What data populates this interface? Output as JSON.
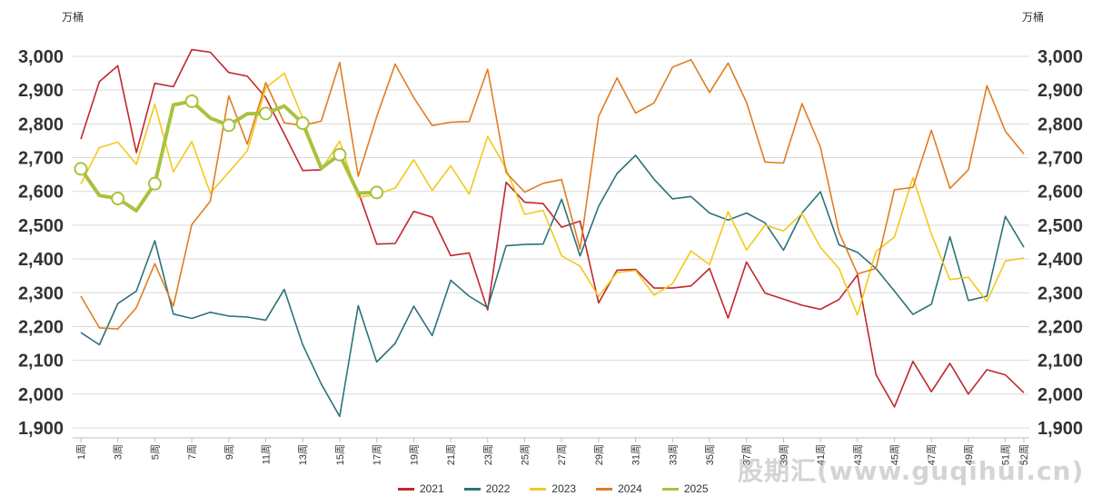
{
  "units": {
    "left": "万桶",
    "right": "万桶"
  },
  "watermark": "股期汇(www.guqihui.cn)",
  "chart_data": {
    "type": "line",
    "ylim": [
      1900,
      3000
    ],
    "yticks": [
      1900,
      2000,
      2100,
      2200,
      2300,
      2400,
      2500,
      2600,
      2700,
      2800,
      2900,
      3000
    ],
    "ytick_labels": [
      "1,900",
      "2,000",
      "2,100",
      "2,200",
      "2,300",
      "2,400",
      "2,500",
      "2,600",
      "2,700",
      "2,800",
      "2,900",
      "3,000"
    ],
    "x_labels": [
      "1周",
      "3周",
      "5周",
      "7周",
      "9周",
      "11周",
      "13周",
      "15周",
      "17周",
      "19周",
      "21周",
      "23周",
      "25周",
      "27周",
      "29周",
      "31周",
      "33周",
      "35周",
      "37周",
      "39周",
      "41周",
      "43周",
      "45周",
      "47周",
      "49周",
      "51周",
      "52周"
    ],
    "x_label_weeks": [
      1,
      3,
      5,
      7,
      9,
      11,
      13,
      15,
      17,
      19,
      21,
      23,
      25,
      27,
      29,
      31,
      33,
      35,
      37,
      39,
      41,
      43,
      45,
      47,
      49,
      51,
      52
    ],
    "legend_position": "bottom",
    "series": [
      {
        "name": "2021",
        "color": "#c0272d",
        "values": [
          2755,
          2925,
          2972,
          2715,
          2920,
          2910,
          3020,
          3012,
          2952,
          2941,
          2878,
          2770,
          2662,
          2664,
          2710,
          2600,
          2444,
          2446,
          2541,
          2524,
          2410,
          2418,
          2249,
          2627,
          2568,
          2564,
          2494,
          2512,
          2270,
          2367,
          2369,
          2314,
          2314,
          2320,
          2372,
          2225,
          2391,
          2299,
          2281,
          2263,
          2251,
          2280,
          2353,
          2058,
          1962,
          2097,
          2007,
          2091,
          2000,
          2072,
          2057,
          2004
        ]
      },
      {
        "name": "2022",
        "color": "#2a7379",
        "values": [
          2182,
          2146,
          2268,
          2305,
          2454,
          2237,
          2224,
          2242,
          2231,
          2228,
          2219,
          2310,
          2146,
          2030,
          1934,
          2262,
          2095,
          2150,
          2260,
          2173,
          2337,
          2290,
          2256,
          2439,
          2443,
          2444,
          2577,
          2409,
          2556,
          2653,
          2707,
          2636,
          2578,
          2585,
          2536,
          2515,
          2536,
          2507,
          2426,
          2536,
          2599,
          2442,
          2420,
          2372,
          2305,
          2236,
          2266,
          2466,
          2277,
          2290,
          2526,
          2435
        ]
      },
      {
        "name": "2023",
        "color": "#f2c919",
        "values": [
          2622,
          2730,
          2746,
          2680,
          2858,
          2658,
          2748,
          2595,
          2657,
          2720,
          2907,
          2950,
          2818,
          2664,
          2749,
          2582,
          2591,
          2610,
          2694,
          2603,
          2676,
          2592,
          2763,
          2667,
          2532,
          2544,
          2409,
          2379,
          2289,
          2360,
          2366,
          2293,
          2327,
          2424,
          2383,
          2540,
          2427,
          2500,
          2483,
          2535,
          2434,
          2372,
          2234,
          2422,
          2465,
          2641,
          2474,
          2339,
          2346,
          2274,
          2394,
          2403
        ]
      },
      {
        "name": "2024",
        "color": "#e07d23",
        "values": [
          2290,
          2196,
          2193,
          2256,
          2386,
          2260,
          2502,
          2571,
          2883,
          2740,
          2922,
          2803,
          2795,
          2808,
          2982,
          2645,
          2821,
          2977,
          2878,
          2795,
          2805,
          2807,
          2962,
          2656,
          2598,
          2624,
          2635,
          2429,
          2822,
          2936,
          2832,
          2862,
          2968,
          2990,
          2893,
          2980,
          2864,
          2687,
          2684,
          2860,
          2731,
          2479,
          2356,
          2372,
          2605,
          2612,
          2781,
          2609,
          2664,
          2913,
          2778,
          2711
        ]
      },
      {
        "name": "2025",
        "color": "#a9c23f",
        "values": [
          2667,
          2588,
          2579,
          2543,
          2623,
          2856,
          2867,
          2817,
          2796,
          2830,
          2831,
          2853,
          2802,
          2669,
          2709,
          2595,
          2597
        ],
        "markers": [
          1,
          3,
          5,
          7,
          9,
          11,
          13,
          15,
          17
        ]
      }
    ]
  }
}
